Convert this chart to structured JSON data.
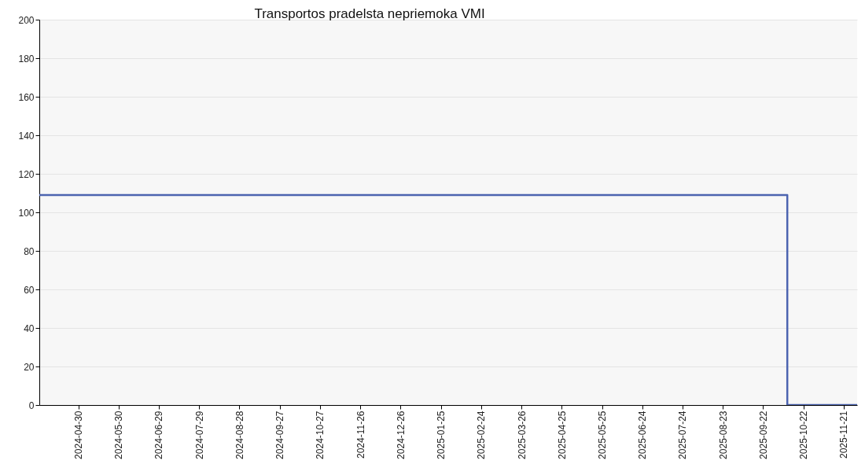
{
  "chart_data": {
    "type": "step",
    "title": "Transportos pradelsta nepriemoka VMI",
    "x": [
      "2024-04-01",
      "2025-10-10",
      "2025-12-01"
    ],
    "series": [
      {
        "color": "#4c64b0",
        "values": [
          109,
          0,
          0
        ]
      }
    ],
    "xlim": [
      "2024-04-01",
      "2025-12-01"
    ],
    "xticks": [
      "2024-04-30",
      "2024-05-30",
      "2024-06-29",
      "2024-07-29",
      "2024-08-28",
      "2024-09-27",
      "2024-10-27",
      "2024-11-26",
      "2024-12-26",
      "2025-01-25",
      "2025-02-24",
      "2025-03-26",
      "2025-04-25",
      "2025-05-25",
      "2025-06-24",
      "2025-07-24",
      "2025-08-23",
      "2025-09-22",
      "2025-10-22",
      "2025-11-21"
    ],
    "ylim": [
      0,
      200
    ],
    "yticks": [
      0,
      20,
      40,
      60,
      80,
      100,
      120,
      140,
      160,
      180,
      200
    ],
    "grid": "y"
  }
}
